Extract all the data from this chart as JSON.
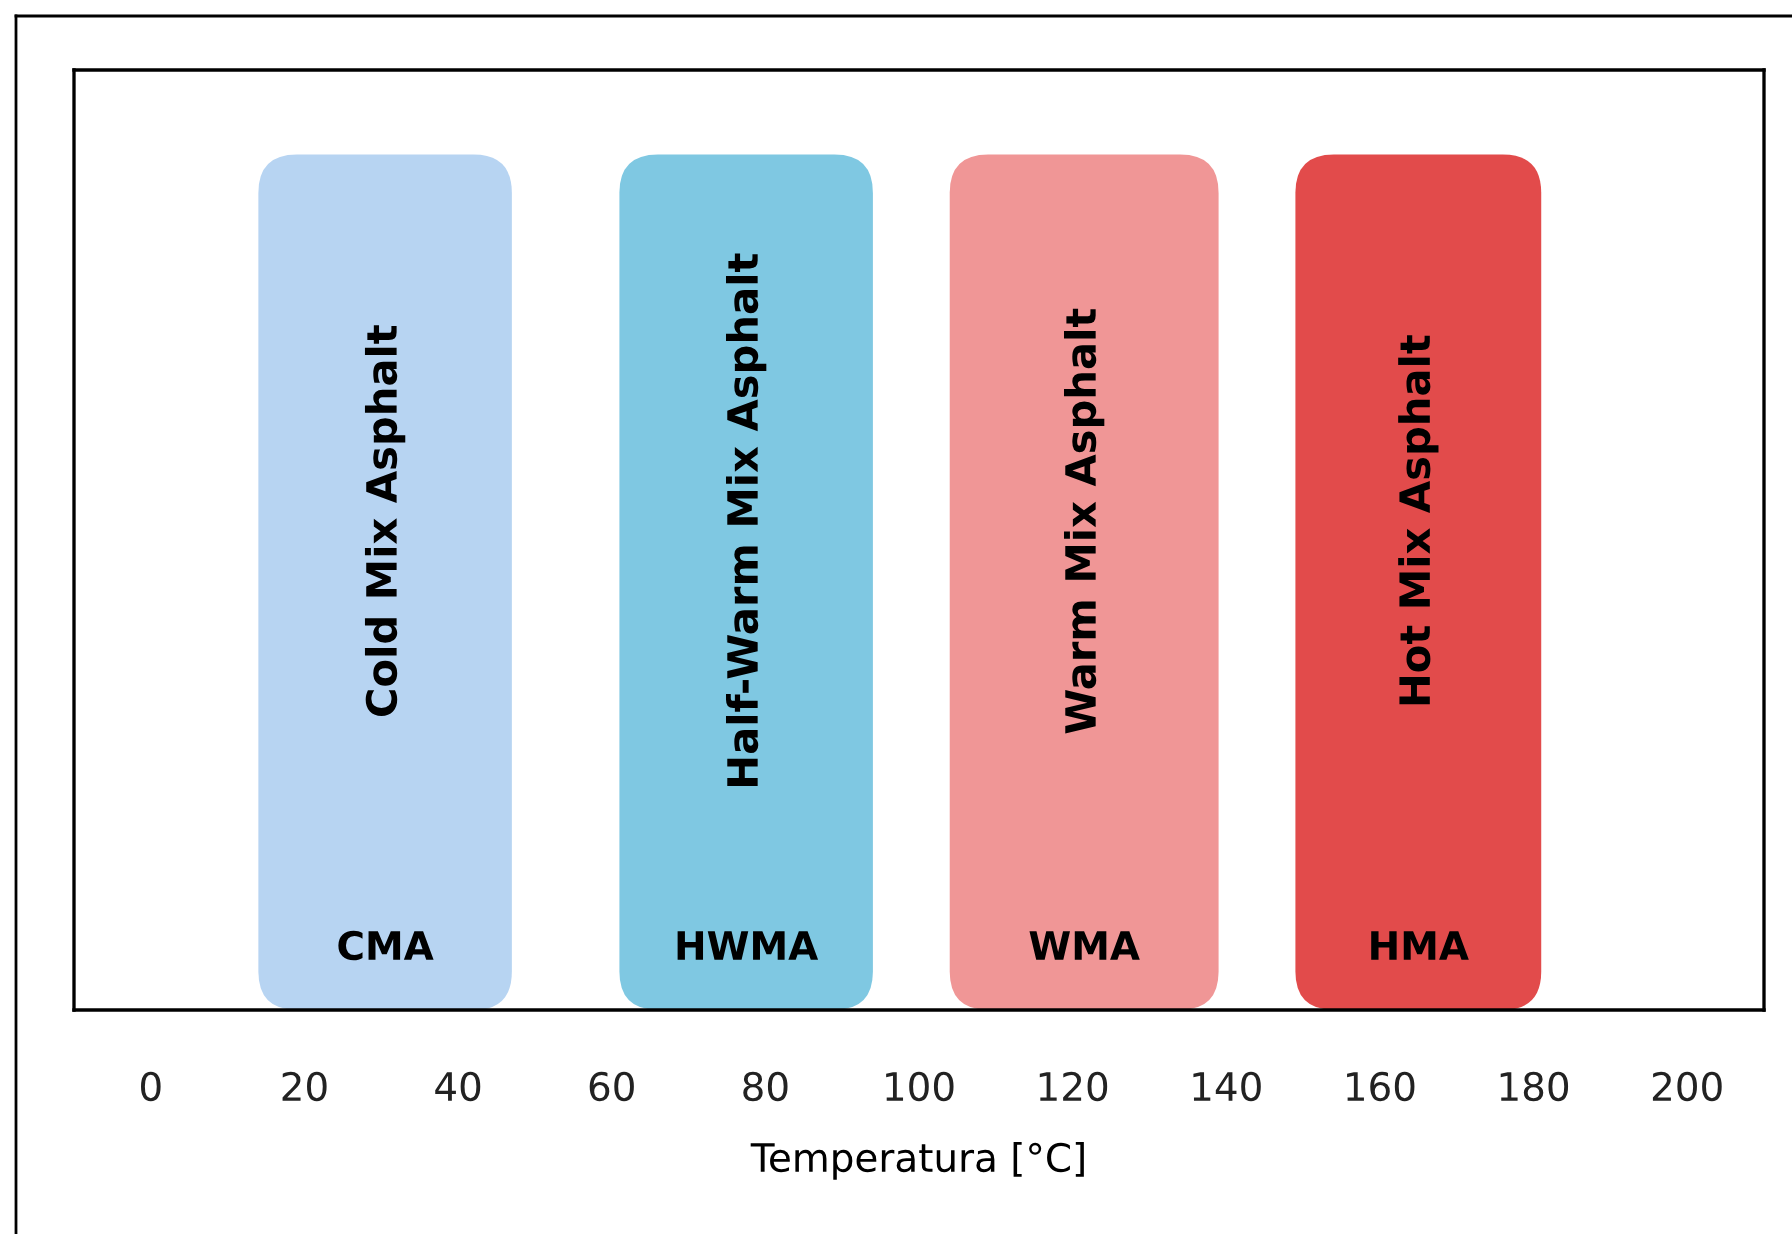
{
  "chart_data": {
    "type": "bar",
    "orientation": "horizontal",
    "categories": [
      null
    ],
    "xlabel": "Temperatura [°C]",
    "xlim": [
      -10,
      210
    ],
    "xticks": [
      0,
      20,
      40,
      60,
      80,
      100,
      120,
      140,
      160,
      180,
      200
    ],
    "series": [
      {
        "name": "Cold Mix Asphalt",
        "color": "#b7d4f2",
        "base": [
          14
        ],
        "values": [
          33
        ]
      },
      {
        "name": "Half-Warm Mix Asphalt",
        "color": "#7fc8e2",
        "base": [
          61
        ],
        "values": [
          33
        ]
      },
      {
        "name": "Warm Mix Asphalt",
        "color": "#f09696",
        "base": [
          104
        ],
        "values": [
          35
        ]
      },
      {
        "name": "Hot Mix Asphalt",
        "color": "#e24b4b",
        "base": [
          149
        ],
        "values": [
          32
        ]
      }
    ],
    "annotations": [
      "CMA",
      "HWMA",
      "WMA",
      "HMA"
    ]
  }
}
